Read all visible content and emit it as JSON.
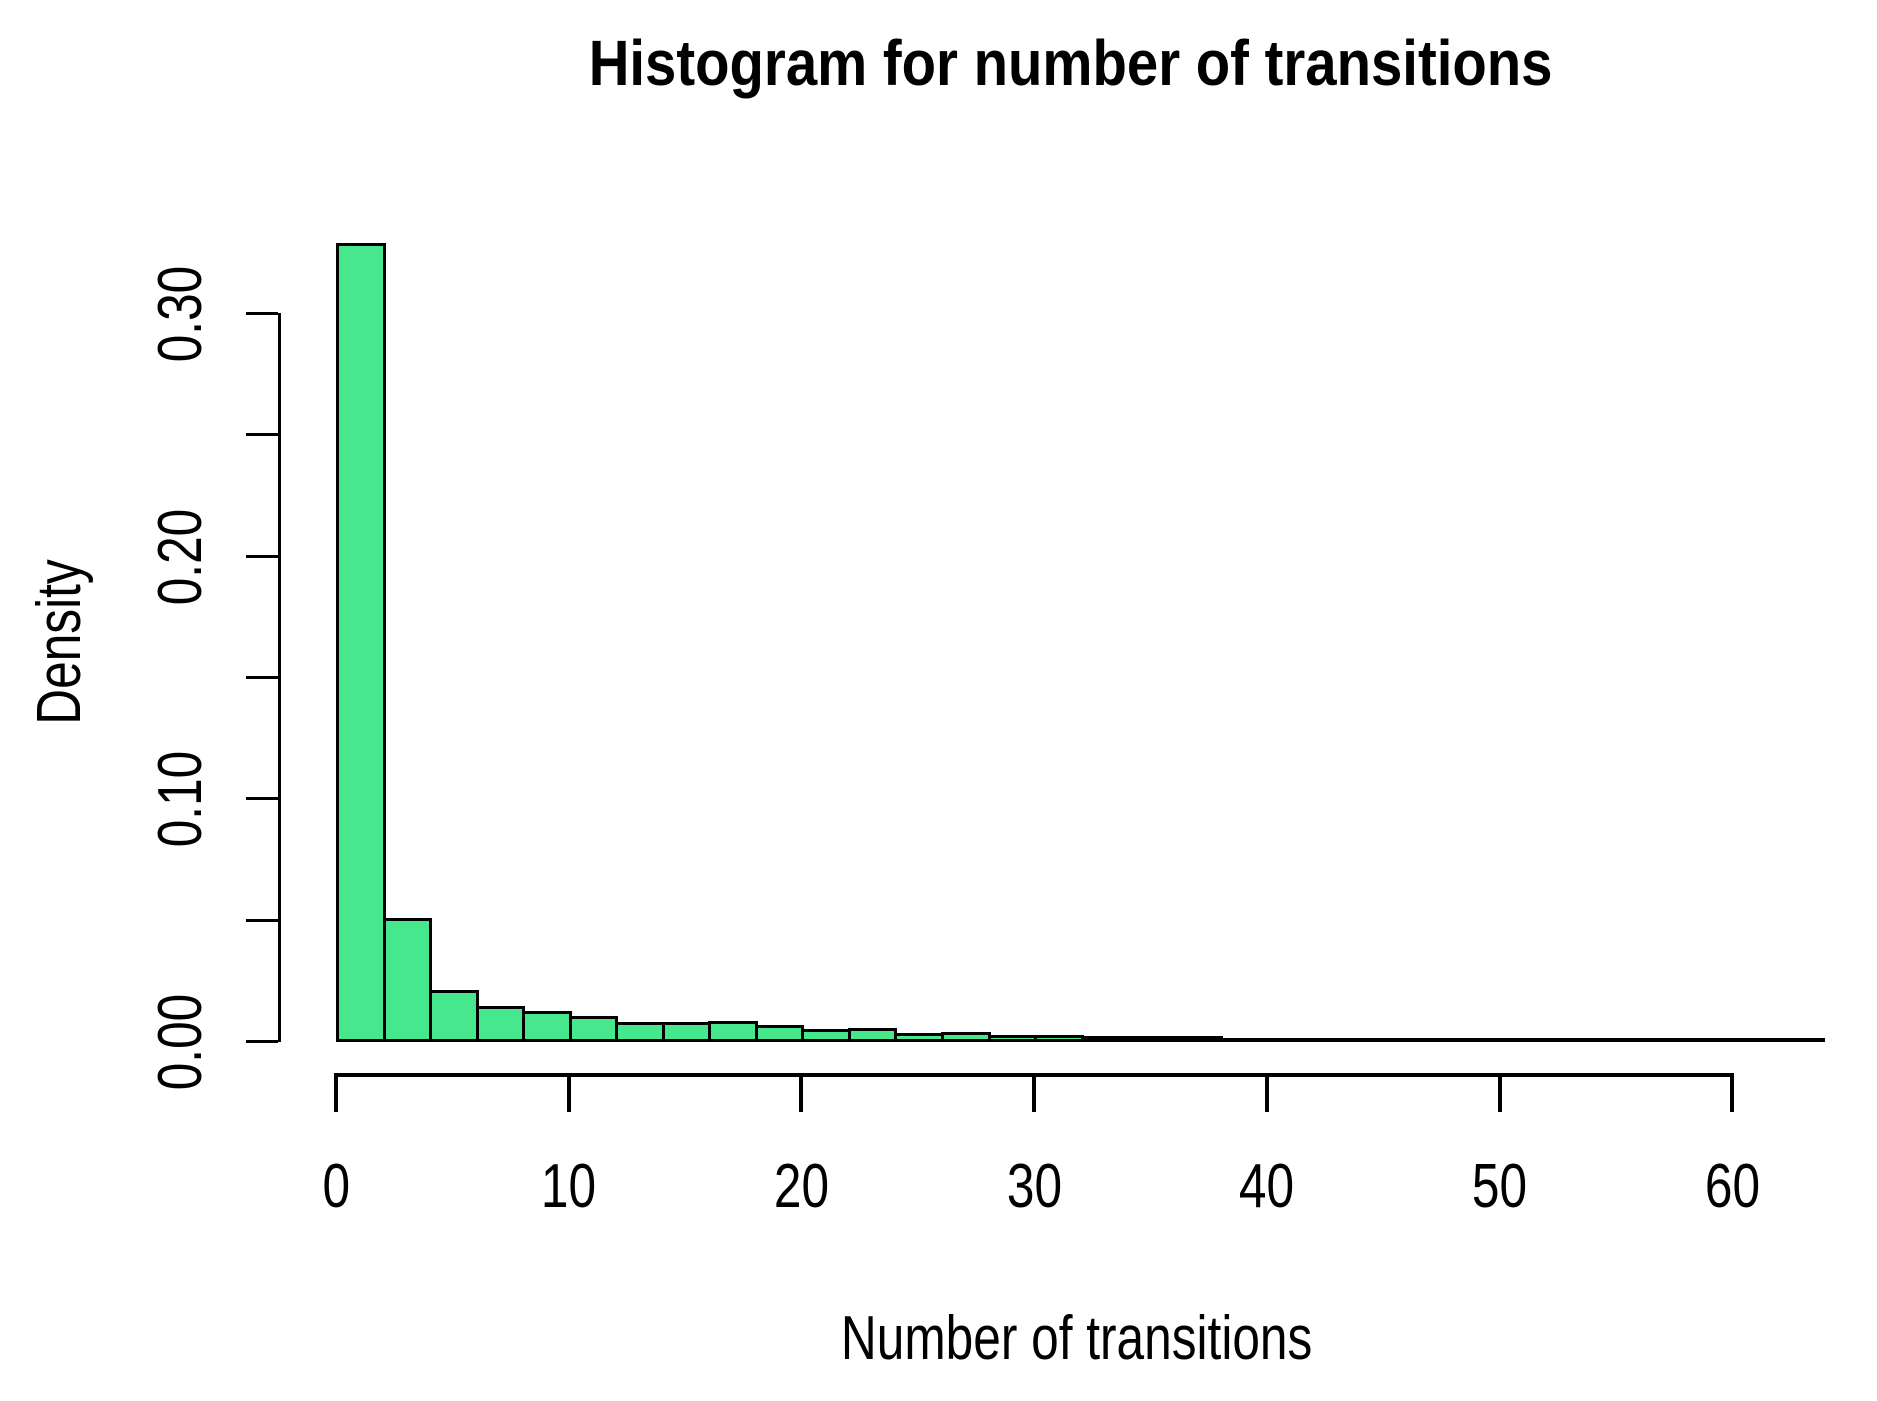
{
  "title": "Histogram for number of transitions",
  "axes": {
    "x_label": "Number of transitions",
    "y_label": "Density"
  },
  "colors": {
    "background": "#FFFFFF",
    "text": "#000000",
    "axis": "#000000",
    "bar_fill": "#47E88D",
    "bar_border": "#000000"
  },
  "chart_data": {
    "type": "bar",
    "subtype": "histogram",
    "title": "Histogram for number of transitions",
    "xlabel": "Number of transitions",
    "ylabel": "Density",
    "xlim": [
      0,
      64
    ],
    "ylim": [
      0,
      0.33
    ],
    "grid": false,
    "legend": null,
    "bin_width": 2,
    "bin_starts": [
      0,
      2,
      4,
      6,
      8,
      10,
      12,
      14,
      16,
      18,
      20,
      22,
      24,
      26,
      28,
      30,
      32,
      34,
      36,
      38,
      40,
      42,
      44,
      46,
      48,
      50,
      52,
      54,
      56,
      58,
      60,
      62
    ],
    "densities": [
      0.328,
      0.05,
      0.02,
      0.0135,
      0.0115,
      0.0095,
      0.007,
      0.007,
      0.0075,
      0.0058,
      0.0042,
      0.0045,
      0.0026,
      0.0027,
      0.0015,
      0.0015,
      0.0013,
      0.001,
      0.001,
      0,
      0,
      0,
      0,
      0,
      0,
      0,
      0,
      0,
      0,
      0,
      0,
      0
    ],
    "x_ticks": {
      "values": [
        0,
        10,
        20,
        30,
        40,
        50,
        60
      ],
      "labels": [
        "0",
        "10",
        "20",
        "30",
        "40",
        "50",
        "60"
      ]
    },
    "y_ticks": {
      "values": [
        0.0,
        0.05,
        0.1,
        0.15,
        0.2,
        0.25,
        0.3
      ],
      "labels": [
        "0.00",
        "",
        "0.10",
        "",
        "0.20",
        "",
        "0.30"
      ]
    }
  }
}
